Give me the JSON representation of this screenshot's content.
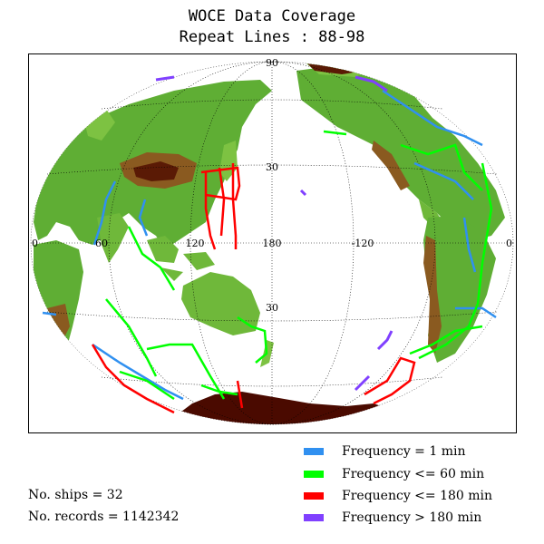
{
  "title": "WOCE Data Coverage",
  "subtitle": "Repeat Lines : 88-98",
  "map": {
    "projection": "pacific-centered-oval",
    "lat_labels": [
      "90",
      "30",
      "30"
    ],
    "lon_labels": [
      "0",
      "60",
      "120",
      "180",
      "-120",
      "0"
    ],
    "colors": {
      "ocean": "#ffffff",
      "land_low": "#3a9a2a",
      "land_mid": "#7dc242",
      "land_high": "#8a5a20",
      "land_peak": "#5a1a05",
      "antarctica": "#4a0a00"
    }
  },
  "legend": [
    {
      "label": "Frequency = 1 min",
      "color": "#3090f0"
    },
    {
      "label": "Frequency <= 60 min",
      "color": "#00ff00"
    },
    {
      "label": "Frequency <= 180 min",
      "color": "#ff0000"
    },
    {
      "label": "Frequency > 180 min",
      "color": "#8040ff"
    }
  ],
  "stats": {
    "ships": "No. ships = 32",
    "records": "No. records = 1142342"
  }
}
